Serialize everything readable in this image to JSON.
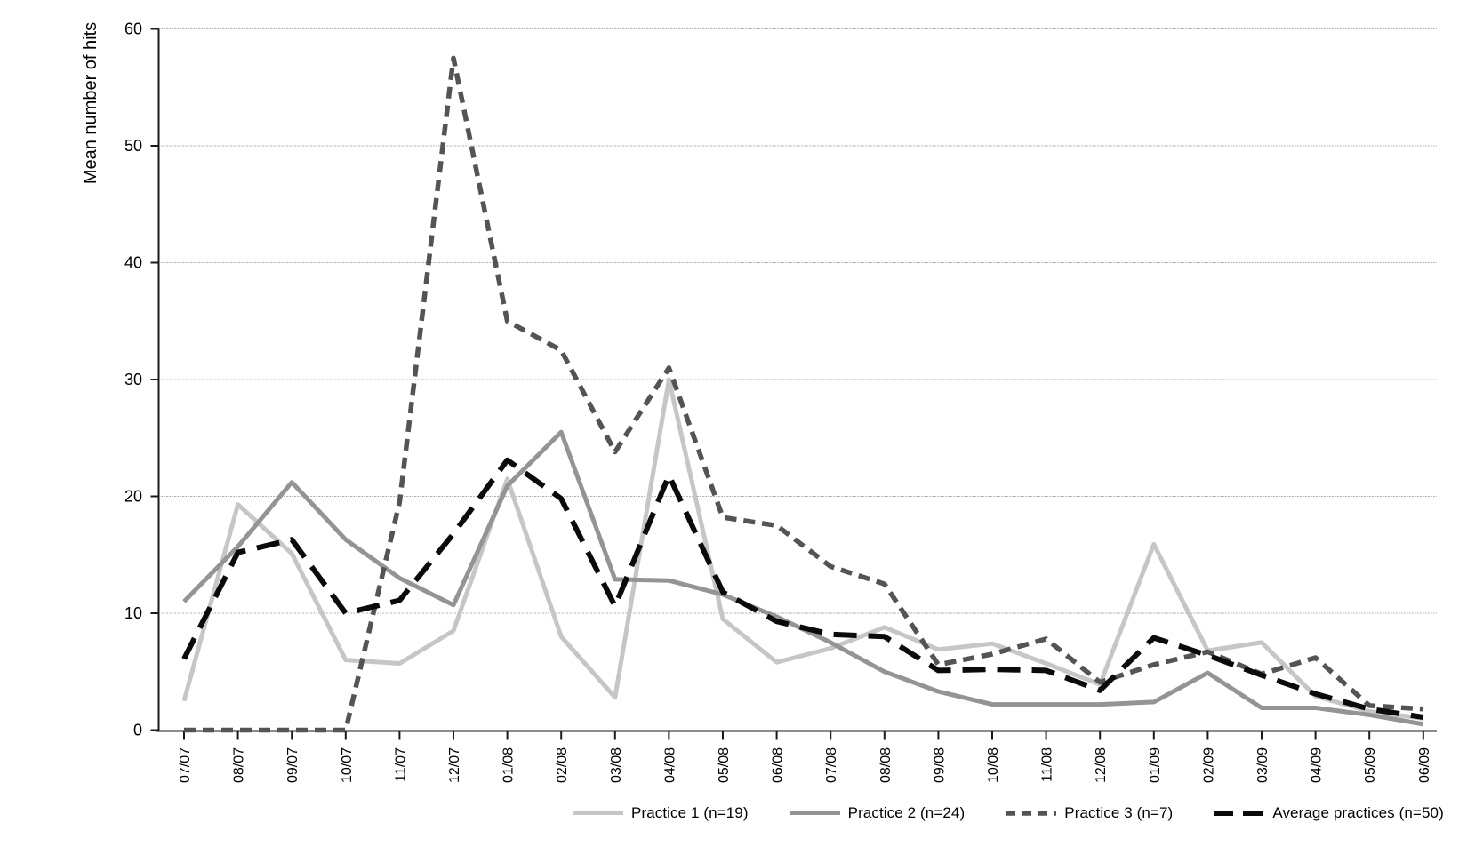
{
  "figure": {
    "background": "#ffffff",
    "axis_color": "#1a1a1a",
    "gridline_color": "#6e6e6e",
    "text_color": "#000000"
  },
  "chart_data": {
    "type": "line",
    "title": "",
    "xlabel": "",
    "ylabel": "Mean number of hits",
    "ylim": [
      0,
      60
    ],
    "yticks": [
      0,
      10,
      20,
      30,
      40,
      50,
      60
    ],
    "grid": "horizontal dotted gridlines at every 10 units",
    "legend_position": "bottom",
    "x_tick_label_rotation": -90,
    "categories": [
      "07/07",
      "08/07",
      "09/07",
      "10/07",
      "11/07",
      "12/07",
      "01/08",
      "02/08",
      "03/08",
      "04/08",
      "05/08",
      "06/08",
      "07/08",
      "08/08",
      "09/08",
      "10/08",
      "11/08",
      "12/08",
      "01/09",
      "02/09",
      "03/09",
      "04/09",
      "05/09",
      "06/09"
    ],
    "series": [
      {
        "id": "practice-1",
        "name": "Practice 1 (n=19)",
        "color": "#c6c6c6",
        "dash": null,
        "width": 5,
        "values": [
          2.5,
          19.3,
          15.1,
          6,
          5.7,
          8.5,
          21.5,
          8,
          2.8,
          30,
          9.5,
          5.8,
          7,
          8.8,
          6.9,
          7.4,
          5.7,
          3.9,
          15.9,
          6.8,
          7.5,
          2.9,
          1.6,
          1
        ]
      },
      {
        "id": "practice-2",
        "name": "Practice 2 (n=24)",
        "color": "#949494",
        "dash": null,
        "width": 5,
        "values": [
          11,
          15.7,
          21.2,
          16.3,
          13,
          10.7,
          20.9,
          25.5,
          12.9,
          12.8,
          11.6,
          9.7,
          7.5,
          5,
          3.3,
          2.2,
          2.2,
          2.2,
          2.4,
          4.9,
          1.9,
          1.9,
          1.3,
          0.5
        ]
      },
      {
        "id": "practice-3",
        "name": "Practice 3 (n=7)",
        "color": "#545454",
        "dash": [
          13,
          8
        ],
        "width": 5.5,
        "values": [
          0,
          0,
          0,
          0,
          19.5,
          57.5,
          35,
          32.5,
          23.8,
          31,
          18.2,
          17.5,
          14,
          12.5,
          5.6,
          6.5,
          7.8,
          4.1,
          5.6,
          6.7,
          4.8,
          6.2,
          2.1,
          1.8
        ]
      },
      {
        "id": "average-practices",
        "name": "Average practices (n=50)",
        "color": "#0a0a0a",
        "dash": [
          26,
          13
        ],
        "width": 6,
        "values": [
          6.1,
          15.2,
          16.3,
          10,
          11.1,
          16.8,
          23.1,
          19.8,
          10.6,
          21.8,
          11.8,
          9.3,
          8.2,
          8,
          5.1,
          5.2,
          5.1,
          3.4,
          7.9,
          6.4,
          4.7,
          3.1,
          1.8,
          1.1
        ]
      }
    ]
  }
}
